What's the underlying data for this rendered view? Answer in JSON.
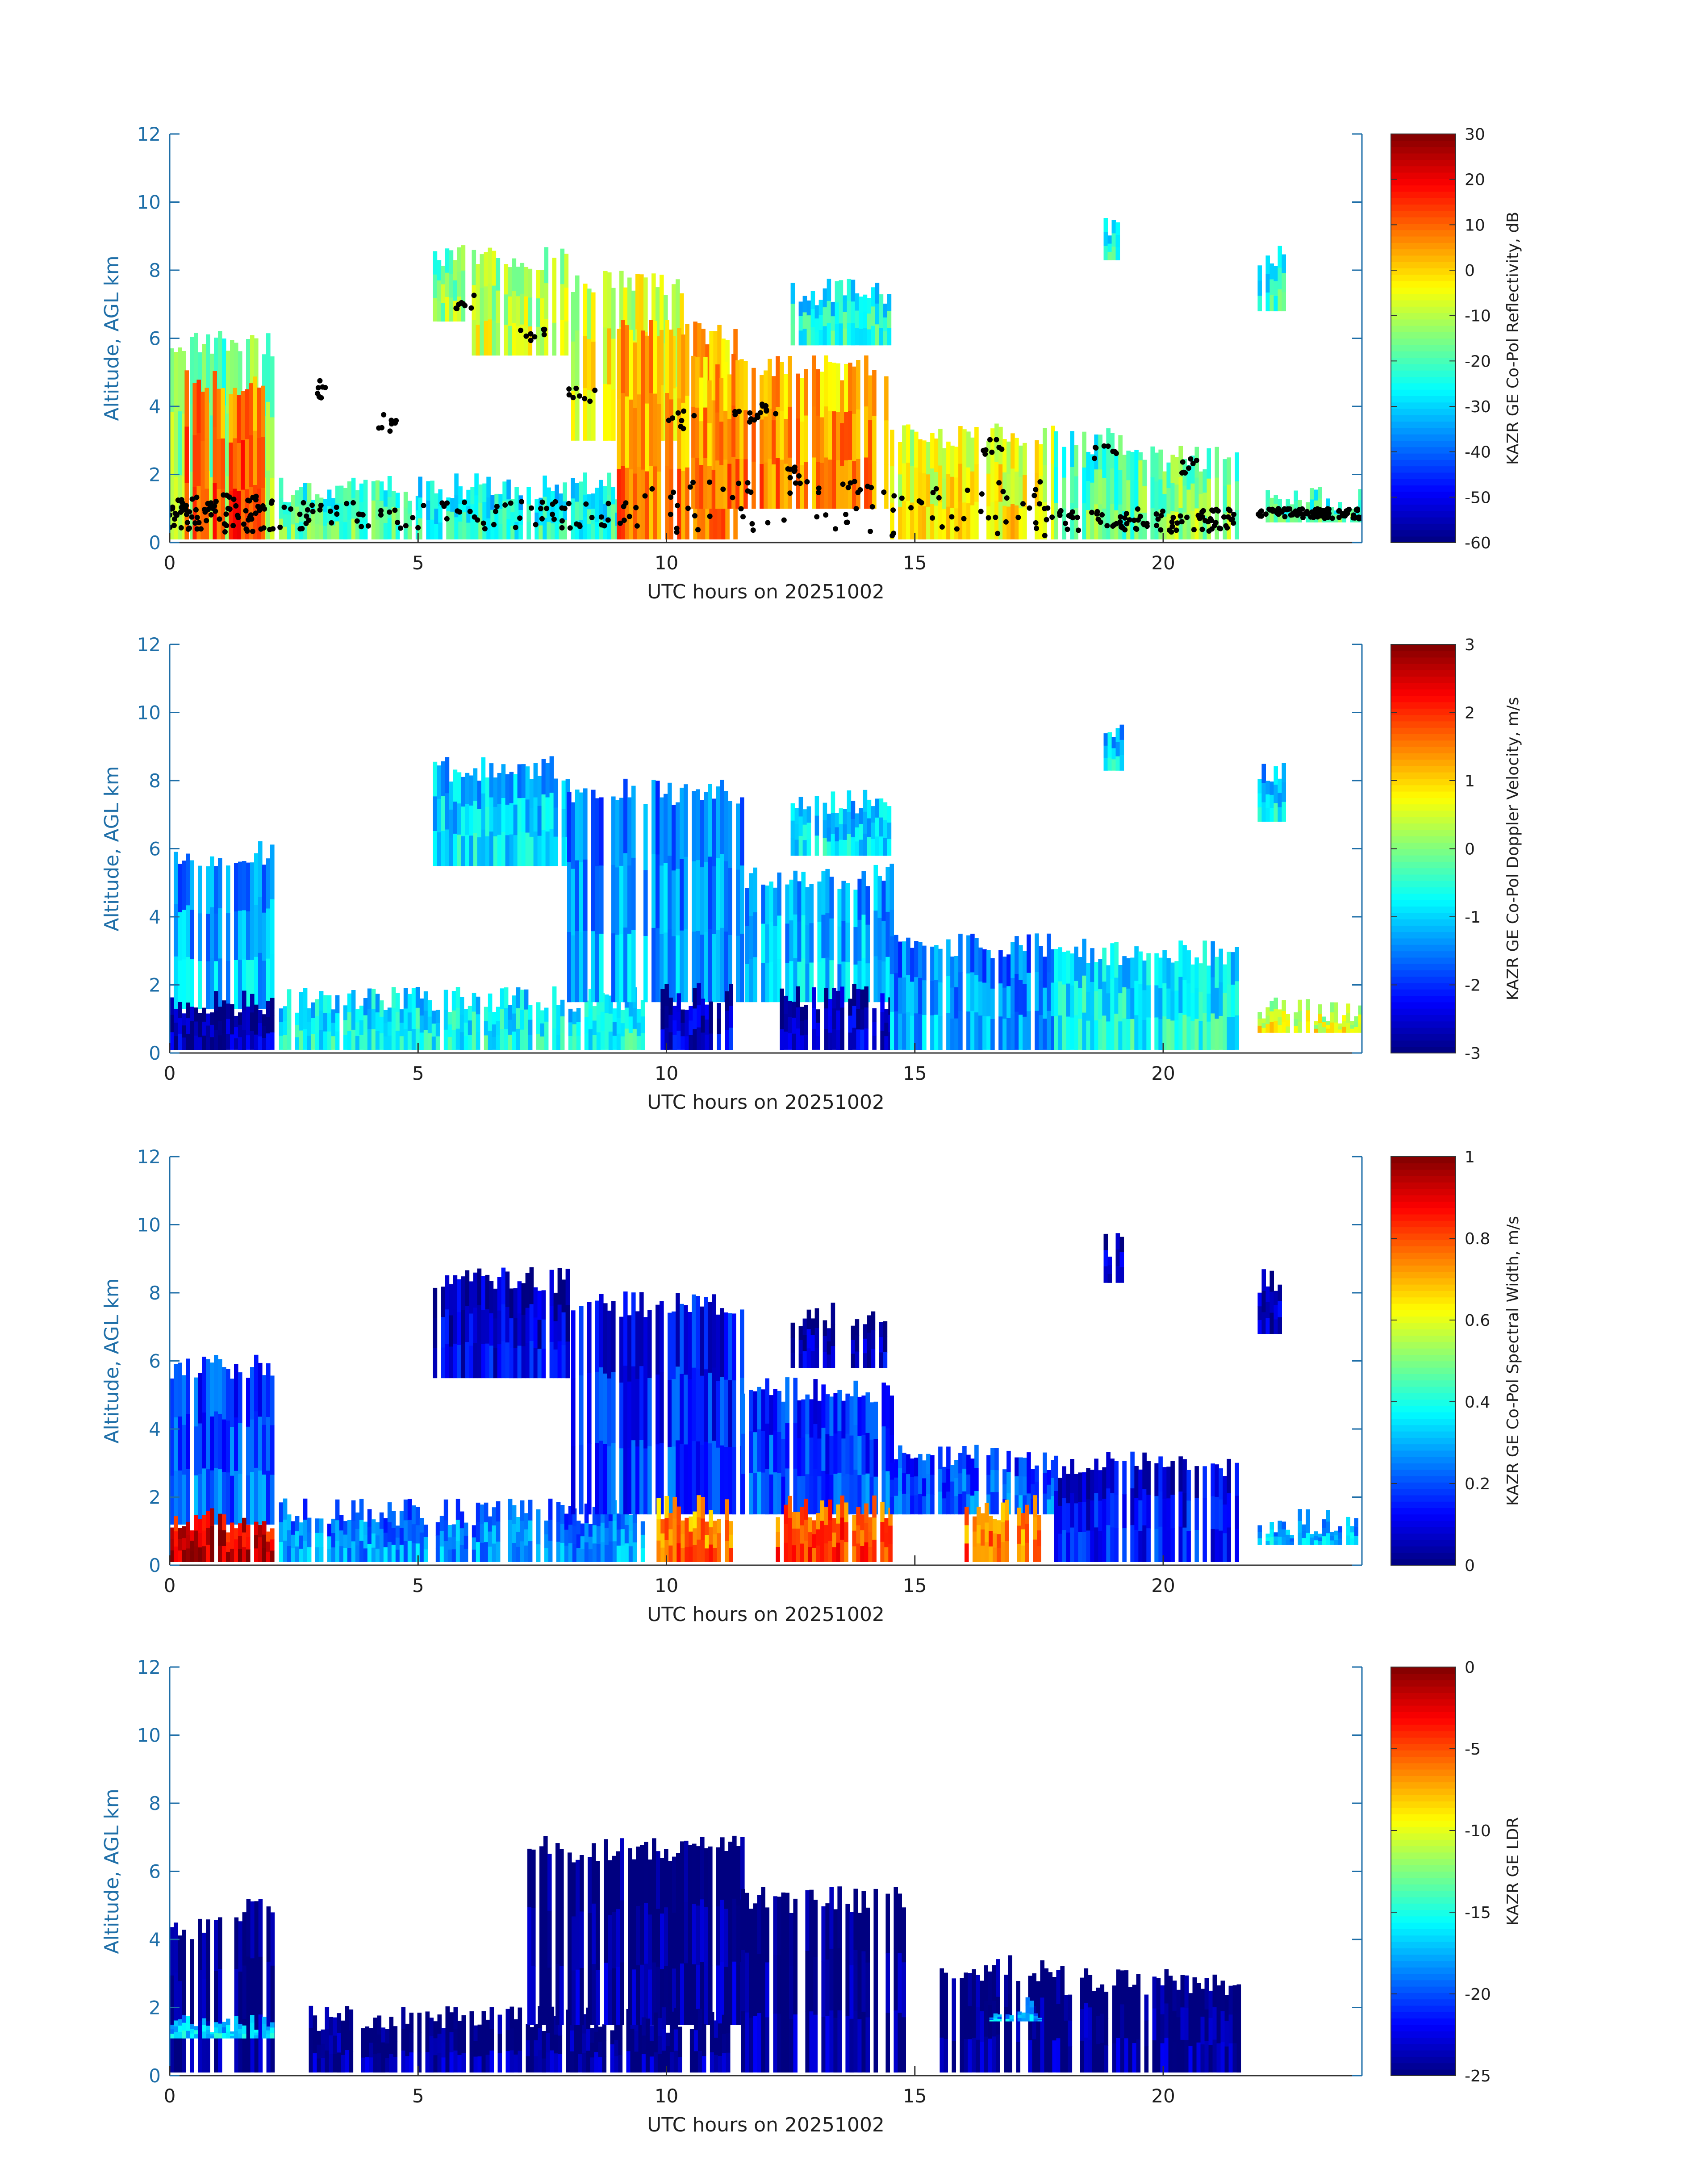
{
  "figure": {
    "date": "20251002",
    "xlabel": "UTC hours on 20251002",
    "ylabel": "Altitude, AGL km"
  },
  "chart_data": [
    {
      "type": "heatmap",
      "id": "reflectivity",
      "xlabel": "UTC hours on 20251002",
      "ylabel": "Altitude, AGL km",
      "xlim": [
        0,
        24
      ],
      "ylim": [
        0,
        12
      ],
      "xticks": [
        0,
        5,
        10,
        15,
        20
      ],
      "yticks": [
        0,
        2,
        4,
        6,
        8,
        10,
        12
      ],
      "colorbar": {
        "label": "KAZR GE Co-Pol Reflectivity, dB",
        "range": [
          -60,
          30
        ],
        "ticks": [
          -60,
          -50,
          -40,
          -30,
          -20,
          -10,
          0,
          10,
          20,
          30
        ],
        "colormap": "jet"
      },
      "overlay": "black dots marking cloud base",
      "cloud_regions": [
        {
          "x0": 0.0,
          "x1": 2.1,
          "y0": 0.1,
          "y1": 5.7,
          "value": -15
        },
        {
          "x0": 0.3,
          "x1": 1.9,
          "y0": 0.1,
          "y1": 4.5,
          "value": 10
        },
        {
          "x0": 2.2,
          "x1": 5.0,
          "y0": 0.1,
          "y1": 1.4,
          "value": -20
        },
        {
          "x0": 5.0,
          "x1": 9.5,
          "y0": 0.1,
          "y1": 1.5,
          "value": -25
        },
        {
          "x0": 5.3,
          "x1": 6.0,
          "y0": 6.5,
          "y1": 8.2,
          "value": -15
        },
        {
          "x0": 6.0,
          "x1": 8.0,
          "y0": 5.5,
          "y1": 8.2,
          "value": -10
        },
        {
          "x0": 8.0,
          "x1": 10.5,
          "y0": 3.0,
          "y1": 7.5,
          "value": -5
        },
        {
          "x0": 9.0,
          "x1": 11.5,
          "y0": 0.1,
          "y1": 6.0,
          "value": 5
        },
        {
          "x0": 10.5,
          "x1": 14.5,
          "y0": 1.0,
          "y1": 5.0,
          "value": 5
        },
        {
          "x0": 12.5,
          "x1": 14.5,
          "y0": 5.8,
          "y1": 7.2,
          "value": -25
        },
        {
          "x0": 14.5,
          "x1": 17.8,
          "y0": 0.1,
          "y1": 3.0,
          "value": -5
        },
        {
          "x0": 17.8,
          "x1": 19.5,
          "y0": 0.1,
          "y1": 2.8,
          "value": -20
        },
        {
          "x0": 19.5,
          "x1": 21.5,
          "y0": 0.1,
          "y1": 2.3,
          "value": -15
        },
        {
          "x0": 18.8,
          "x1": 19.2,
          "y0": 8.3,
          "y1": 9.2,
          "value": -25
        },
        {
          "x0": 21.9,
          "x1": 22.4,
          "y0": 6.8,
          "y1": 8.2,
          "value": -25
        },
        {
          "x0": 21.9,
          "x1": 24.0,
          "y0": 0.6,
          "y1": 1.1,
          "value": -20
        }
      ]
    },
    {
      "type": "heatmap",
      "id": "doppler-velocity",
      "xlabel": "UTC hours on 20251002",
      "ylabel": "Altitude, AGL km",
      "xlim": [
        0,
        24
      ],
      "ylim": [
        0,
        12
      ],
      "xticks": [
        0,
        5,
        10,
        15,
        20
      ],
      "yticks": [
        0,
        2,
        4,
        6,
        8,
        10,
        12
      ],
      "colorbar": {
        "label": "KAZR GE Co-Pol Doppler Velocity, m/s",
        "range": [
          -3,
          3
        ],
        "ticks": [
          -3,
          -2,
          -1,
          0,
          1,
          2,
          3
        ],
        "colormap": "jet"
      },
      "cloud_regions": [
        {
          "x0": 0.0,
          "x1": 2.1,
          "y0": 1.3,
          "y1": 5.7,
          "value": -1.3
        },
        {
          "x0": 0.0,
          "x1": 2.1,
          "y0": 0.1,
          "y1": 1.3,
          "value": -2.8
        },
        {
          "x0": 2.2,
          "x1": 9.5,
          "y0": 0.1,
          "y1": 1.4,
          "value": -0.8
        },
        {
          "x0": 5.3,
          "x1": 8.0,
          "y0": 5.5,
          "y1": 8.2,
          "value": -1.0
        },
        {
          "x0": 8.0,
          "x1": 11.5,
          "y0": 1.5,
          "y1": 7.5,
          "value": -1.4
        },
        {
          "x0": 9.8,
          "x1": 11.3,
          "y0": 0.1,
          "y1": 1.5,
          "value": -2.6
        },
        {
          "x0": 11.5,
          "x1": 14.5,
          "y0": 1.5,
          "y1": 5.0,
          "value": -1.2
        },
        {
          "x0": 12.2,
          "x1": 14.5,
          "y0": 0.1,
          "y1": 1.5,
          "value": -2.6
        },
        {
          "x0": 12.5,
          "x1": 14.5,
          "y0": 5.8,
          "y1": 7.2,
          "value": -1.0
        },
        {
          "x0": 14.5,
          "x1": 17.8,
          "y0": 0.1,
          "y1": 3.0,
          "value": -1.4
        },
        {
          "x0": 17.8,
          "x1": 21.5,
          "y0": 0.1,
          "y1": 2.8,
          "value": -0.8
        },
        {
          "x0": 18.8,
          "x1": 19.2,
          "y0": 8.3,
          "y1": 9.2,
          "value": -1.0
        },
        {
          "x0": 21.9,
          "x1": 22.4,
          "y0": 6.8,
          "y1": 8.2,
          "value": -1.0
        },
        {
          "x0": 21.9,
          "x1": 24.0,
          "y0": 0.6,
          "y1": 1.1,
          "value": 0.5
        }
      ]
    },
    {
      "type": "heatmap",
      "id": "spectral-width",
      "xlabel": "UTC hours on 20251002",
      "ylabel": "Altitude, AGL km",
      "xlim": [
        0,
        24
      ],
      "ylim": [
        0,
        12
      ],
      "xticks": [
        0,
        5,
        10,
        15,
        20
      ],
      "yticks": [
        0,
        2,
        4,
        6,
        8,
        10,
        12
      ],
      "colorbar": {
        "label": "KAZR GE Co-Pol Spectral Width, m/s",
        "range": [
          0,
          1
        ],
        "ticks": [
          0,
          0.2,
          0.4,
          0.6,
          0.8,
          1
        ],
        "colormap": "jet"
      },
      "cloud_regions": [
        {
          "x0": 0.0,
          "x1": 2.1,
          "y0": 1.2,
          "y1": 5.7,
          "value": 0.2
        },
        {
          "x0": 0.0,
          "x1": 2.1,
          "y0": 0.1,
          "y1": 1.2,
          "value": 0.92
        },
        {
          "x0": 2.2,
          "x1": 9.5,
          "y0": 0.1,
          "y1": 1.4,
          "value": 0.25
        },
        {
          "x0": 5.3,
          "x1": 8.0,
          "y0": 5.5,
          "y1": 8.2,
          "value": 0.08
        },
        {
          "x0": 8.0,
          "x1": 11.5,
          "y0": 1.5,
          "y1": 7.5,
          "value": 0.15
        },
        {
          "x0": 9.8,
          "x1": 11.3,
          "y0": 0.1,
          "y1": 1.5,
          "value": 0.75
        },
        {
          "x0": 11.5,
          "x1": 14.5,
          "y0": 1.5,
          "y1": 5.0,
          "value": 0.18
        },
        {
          "x0": 12.2,
          "x1": 14.5,
          "y0": 0.1,
          "y1": 1.5,
          "value": 0.8
        },
        {
          "x0": 12.5,
          "x1": 14.5,
          "y0": 5.8,
          "y1": 7.2,
          "value": 0.05
        },
        {
          "x0": 14.5,
          "x1": 17.8,
          "y0": 1.5,
          "y1": 3.0,
          "value": 0.2
        },
        {
          "x0": 16.0,
          "x1": 17.5,
          "y0": 0.1,
          "y1": 1.5,
          "value": 0.75
        },
        {
          "x0": 17.8,
          "x1": 21.5,
          "y0": 0.1,
          "y1": 2.8,
          "value": 0.12
        },
        {
          "x0": 18.8,
          "x1": 19.2,
          "y0": 8.3,
          "y1": 9.2,
          "value": 0.05
        },
        {
          "x0": 21.9,
          "x1": 22.4,
          "y0": 6.8,
          "y1": 8.2,
          "value": 0.05
        },
        {
          "x0": 21.9,
          "x1": 24.0,
          "y0": 0.6,
          "y1": 1.1,
          "value": 0.3
        }
      ]
    },
    {
      "type": "heatmap",
      "id": "ldr",
      "xlabel": "UTC hours on 20251002",
      "ylabel": "Altitude, AGL km",
      "xlim": [
        0,
        24
      ],
      "ylim": [
        0,
        12
      ],
      "xticks": [
        0,
        5,
        10,
        15,
        20
      ],
      "yticks": [
        0,
        2,
        4,
        6,
        8,
        10,
        12
      ],
      "colorbar": {
        "label": "KAZR GE LDR",
        "range": [
          -25,
          0
        ],
        "ticks": [
          -25,
          -20,
          -15,
          -10,
          -5,
          0
        ],
        "colormap": "jet"
      },
      "cloud_regions": [
        {
          "x0": 0.0,
          "x1": 1.0,
          "y0": 0.1,
          "y1": 4.2,
          "value": -25
        },
        {
          "x0": 1.3,
          "x1": 2.1,
          "y0": 0.1,
          "y1": 4.7,
          "value": -25
        },
        {
          "x0": 0.0,
          "x1": 2.1,
          "y0": 1.1,
          "y1": 1.4,
          "value": -17
        },
        {
          "x0": 2.8,
          "x1": 9.5,
          "y0": 0.1,
          "y1": 1.5,
          "value": -25
        },
        {
          "x0": 7.2,
          "x1": 11.5,
          "y0": 1.5,
          "y1": 6.5,
          "value": -25
        },
        {
          "x0": 9.5,
          "x1": 11.2,
          "y0": 0.1,
          "y1": 1.5,
          "value": -25
        },
        {
          "x0": 11.5,
          "x1": 14.8,
          "y0": 0.1,
          "y1": 5.0,
          "value": -25
        },
        {
          "x0": 15.5,
          "x1": 18.0,
          "y0": 0.1,
          "y1": 3.0,
          "value": -25
        },
        {
          "x0": 16.5,
          "x1": 17.5,
          "y0": 1.6,
          "y1": 1.9,
          "value": -18
        },
        {
          "x0": 18.0,
          "x1": 21.5,
          "y0": 0.1,
          "y1": 2.6,
          "value": -25
        }
      ]
    }
  ]
}
